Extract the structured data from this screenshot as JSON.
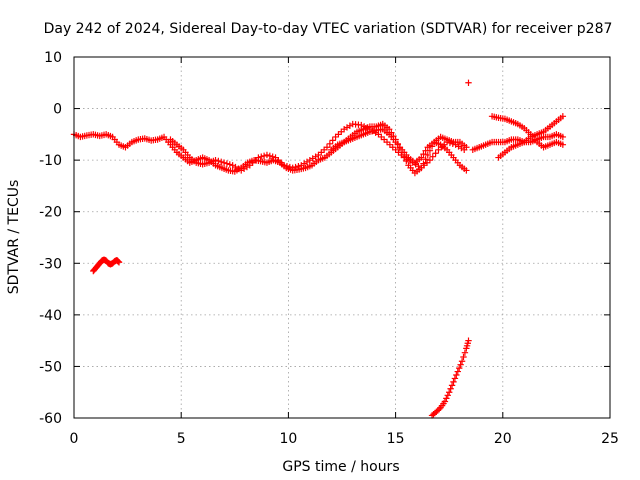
{
  "chart_data": {
    "type": "scatter",
    "title": "Day 242 of 2024, Sidereal Day-to-day VTEC variation (SDTVAR) for receiver p287",
    "xlabel": "GPS time / hours",
    "ylabel": "SDTVAR / TECUs",
    "xlim": [
      0,
      25
    ],
    "ylim": [
      -60,
      10
    ],
    "xticks": [
      "0",
      "5",
      "10",
      "15",
      "20",
      "25"
    ],
    "yticks": [
      "10",
      "0",
      "-10",
      "-20",
      "-30",
      "-40",
      "-50",
      "-60"
    ],
    "grid": true,
    "marker": "+",
    "color": "#ff0000",
    "series": [
      {
        "name": "track-a",
        "x": [
          0.0,
          0.3,
          0.6,
          0.9,
          1.2,
          1.5,
          1.8,
          2.1,
          2.4,
          2.7,
          3.0,
          3.3,
          3.6,
          3.9,
          4.2,
          4.5,
          4.8,
          5.1,
          5.4,
          5.7,
          6.0,
          6.3,
          6.6,
          6.9,
          7.2,
          7.5,
          7.8,
          8.1,
          8.4,
          8.7,
          9.0,
          9.3,
          9.6,
          9.9,
          10.2,
          10.5,
          10.8,
          11.1,
          11.4,
          11.7,
          12.0,
          12.3,
          12.6,
          12.9,
          13.2,
          13.5,
          13.8,
          14.1,
          14.4,
          14.7,
          15.0,
          15.3,
          15.6,
          15.9,
          16.2,
          16.5,
          16.8,
          17.1,
          17.4,
          17.7,
          18.0,
          18.3
        ],
        "y": [
          -5.0,
          -5.5,
          -5.2,
          -5.0,
          -5.3,
          -5.0,
          -5.5,
          -7.0,
          -7.5,
          -6.5,
          -6.0,
          -5.8,
          -6.2,
          -6.0,
          -5.5,
          -7.0,
          -8.5,
          -9.5,
          -10.5,
          -10.0,
          -9.5,
          -10.0,
          -11.0,
          -11.5,
          -12.0,
          -12.2,
          -11.5,
          -10.5,
          -10.0,
          -10.2,
          -10.5,
          -10.0,
          -10.5,
          -11.5,
          -12.0,
          -11.8,
          -11.5,
          -11.0,
          -10.0,
          -9.5,
          -8.5,
          -7.5,
          -6.5,
          -5.5,
          -4.5,
          -4.0,
          -3.5,
          -3.5,
          -3.0,
          -4.0,
          -6.0,
          -8.5,
          -11.0,
          -12.5,
          -11.5,
          -9.0,
          -6.5,
          -5.5,
          -6.0,
          -6.5,
          -6.5,
          -7.5
        ]
      },
      {
        "name": "track-b",
        "x": [
          4.5,
          4.8,
          5.1,
          5.4,
          5.7,
          6.0,
          6.3,
          6.6,
          7.0,
          7.4,
          7.8,
          8.2,
          8.6,
          9.0,
          9.4,
          9.8,
          10.2,
          10.6,
          11.0,
          11.4,
          11.8,
          12.2,
          12.6,
          13.0,
          13.4,
          13.8,
          14.2,
          14.6,
          15.0,
          15.4,
          15.8,
          16.2,
          16.6,
          17.0,
          17.4,
          17.8,
          18.2
        ],
        "y": [
          -6.0,
          -7.0,
          -8.0,
          -9.5,
          -10.5,
          -10.8,
          -10.5,
          -10.0,
          -10.5,
          -11.0,
          -12.0,
          -11.0,
          -9.5,
          -9.0,
          -9.5,
          -11.0,
          -11.5,
          -11.0,
          -10.0,
          -9.0,
          -7.5,
          -5.5,
          -4.0,
          -3.0,
          -3.2,
          -4.0,
          -5.0,
          -6.5,
          -8.0,
          -9.5,
          -10.5,
          -11.5,
          -10.0,
          -8.0,
          -6.5,
          -7.0,
          -8.0
        ]
      },
      {
        "name": "track-c",
        "x": [
          12.0,
          12.3,
          12.6,
          12.9,
          13.2,
          13.5,
          13.8,
          14.1,
          14.4,
          14.7,
          15.0,
          15.3,
          15.6,
          15.9,
          16.2,
          16.5,
          16.8,
          17.1,
          17.4,
          17.7,
          18.0,
          18.3
        ],
        "y": [
          -8.0,
          -7.0,
          -6.5,
          -6.0,
          -5.5,
          -5.0,
          -4.5,
          -4.2,
          -4.0,
          -5.0,
          -6.5,
          -8.0,
          -9.5,
          -10.5,
          -9.5,
          -7.5,
          -6.5,
          -7.0,
          -8.0,
          -9.5,
          -11.0,
          -12.0
        ]
      },
      {
        "name": "track-d",
        "x": [
          18.6,
          18.9,
          19.2,
          19.5,
          19.8,
          20.1,
          20.4,
          20.7,
          21.0,
          21.3,
          21.6,
          21.9,
          22.2,
          22.5,
          22.8
        ],
        "y": [
          -8.0,
          -7.5,
          -7.0,
          -6.5,
          -6.5,
          -6.5,
          -6.0,
          -6.0,
          -6.5,
          -6.5,
          -6.0,
          -5.5,
          -5.5,
          -5.0,
          -5.5
        ]
      },
      {
        "name": "track-e",
        "x": [
          19.5,
          19.8,
          20.1,
          20.4,
          20.7,
          21.0,
          21.3,
          21.6,
          21.9,
          22.2,
          22.5,
          22.8
        ],
        "y": [
          -1.5,
          -1.8,
          -2.0,
          -2.5,
          -3.0,
          -3.8,
          -5.0,
          -6.5,
          -7.5,
          -7.0,
          -6.5,
          -7.0
        ]
      },
      {
        "name": "track-f",
        "x": [
          19.8,
          20.1,
          20.4,
          20.7,
          21.0,
          21.3,
          21.6,
          21.9,
          22.2,
          22.5,
          22.8
        ],
        "y": [
          -9.5,
          -8.5,
          -7.5,
          -7.0,
          -6.5,
          -5.5,
          -5.0,
          -4.5,
          -3.5,
          -2.5,
          -1.5
        ]
      },
      {
        "name": "track-g",
        "x": [
          0.9,
          1.0,
          1.1,
          1.2,
          1.3,
          1.4,
          1.5,
          1.6,
          1.7,
          1.8,
          1.9,
          2.0,
          2.1
        ],
        "y": [
          -31.5,
          -31.0,
          -30.5,
          -30.0,
          -29.5,
          -29.3,
          -29.5,
          -30.0,
          -30.2,
          -30.0,
          -29.6,
          -29.4,
          -29.8
        ]
      },
      {
        "name": "track-h",
        "x": [
          16.7,
          16.9,
          17.1,
          17.3,
          17.5,
          17.7,
          17.9,
          18.1,
          18.3,
          18.4
        ],
        "y": [
          -59.5,
          -58.8,
          -58.0,
          -56.8,
          -55.0,
          -53.0,
          -51.0,
          -49.0,
          -46.5,
          -45.0
        ]
      },
      {
        "name": "outlier",
        "x": [
          18.4
        ],
        "y": [
          5.0
        ]
      }
    ]
  }
}
